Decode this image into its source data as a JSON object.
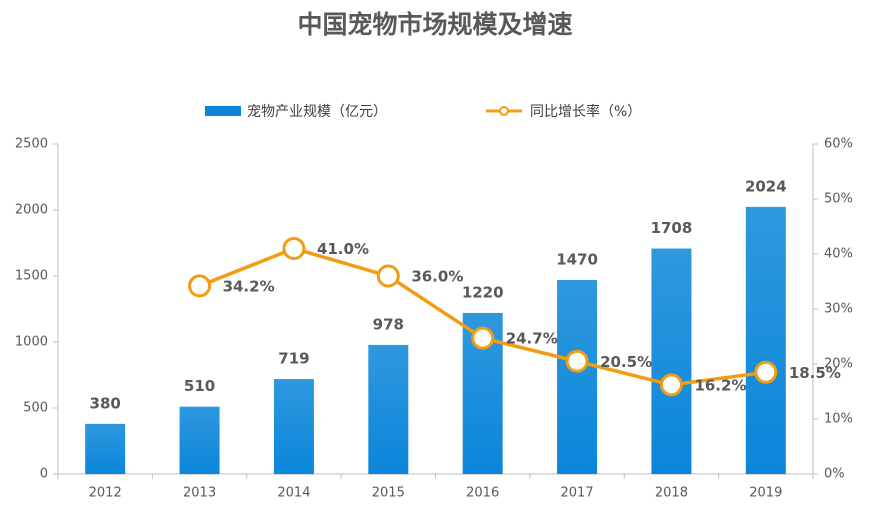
{
  "chart_data": {
    "type": "bar",
    "title": "中国宠物市场规模及增速",
    "categories": [
      "2012",
      "2013",
      "2014",
      "2015",
      "2016",
      "2017",
      "2018",
      "2019"
    ],
    "series": [
      {
        "name": "宠物产业规模（亿元）",
        "type": "bar",
        "color": "#0a86d9",
        "values": [
          380,
          510,
          719,
          978,
          1220,
          1470,
          1708,
          2024
        ]
      },
      {
        "name": "同比增长率（%）",
        "type": "line",
        "axis": "y2",
        "color": "#f39c12",
        "values": [
          null,
          34.2,
          41.0,
          36.0,
          24.7,
          20.5,
          16.2,
          18.5
        ],
        "value_labels": [
          null,
          "34.2%",
          "41.0%",
          "36.0%",
          "24.7%",
          "20.5%",
          "16.2%",
          "18.5%"
        ]
      }
    ],
    "ylim": [
      0,
      2500
    ],
    "yticks": [
      0,
      500,
      1000,
      1500,
      2000,
      2500
    ],
    "y2lim": [
      0,
      60
    ],
    "y2ticks": [
      {
        "value": 0,
        "label": "0%"
      },
      {
        "value": 10,
        "label": "10%"
      },
      {
        "value": 20,
        "label": "20%"
      },
      {
        "value": 30,
        "label": "30%"
      },
      {
        "value": 40,
        "label": "40%"
      },
      {
        "value": 50,
        "label": "50%"
      },
      {
        "value": 60,
        "label": "60%"
      }
    ],
    "legend": "top"
  }
}
